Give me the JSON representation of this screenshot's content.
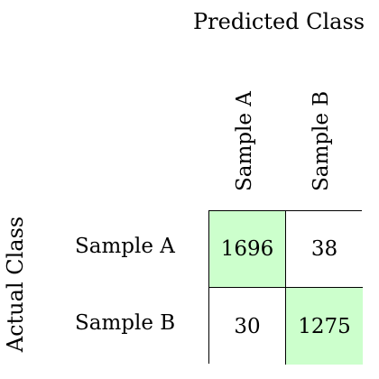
{
  "predicted_title": "Predicted Class",
  "actual_title": "Actual Class",
  "columns": [
    "Sample A",
    "Sample B"
  ],
  "rows": [
    "Sample A",
    "Sample B"
  ],
  "cells": [
    [
      {
        "value": "1696",
        "color": "#ccffcc"
      },
      {
        "value": "38",
        "color": "#ffffff"
      }
    ],
    [
      {
        "value": "30",
        "color": "#ffffff"
      },
      {
        "value": "1275",
        "color": "#ccffcc"
      }
    ]
  ]
}
